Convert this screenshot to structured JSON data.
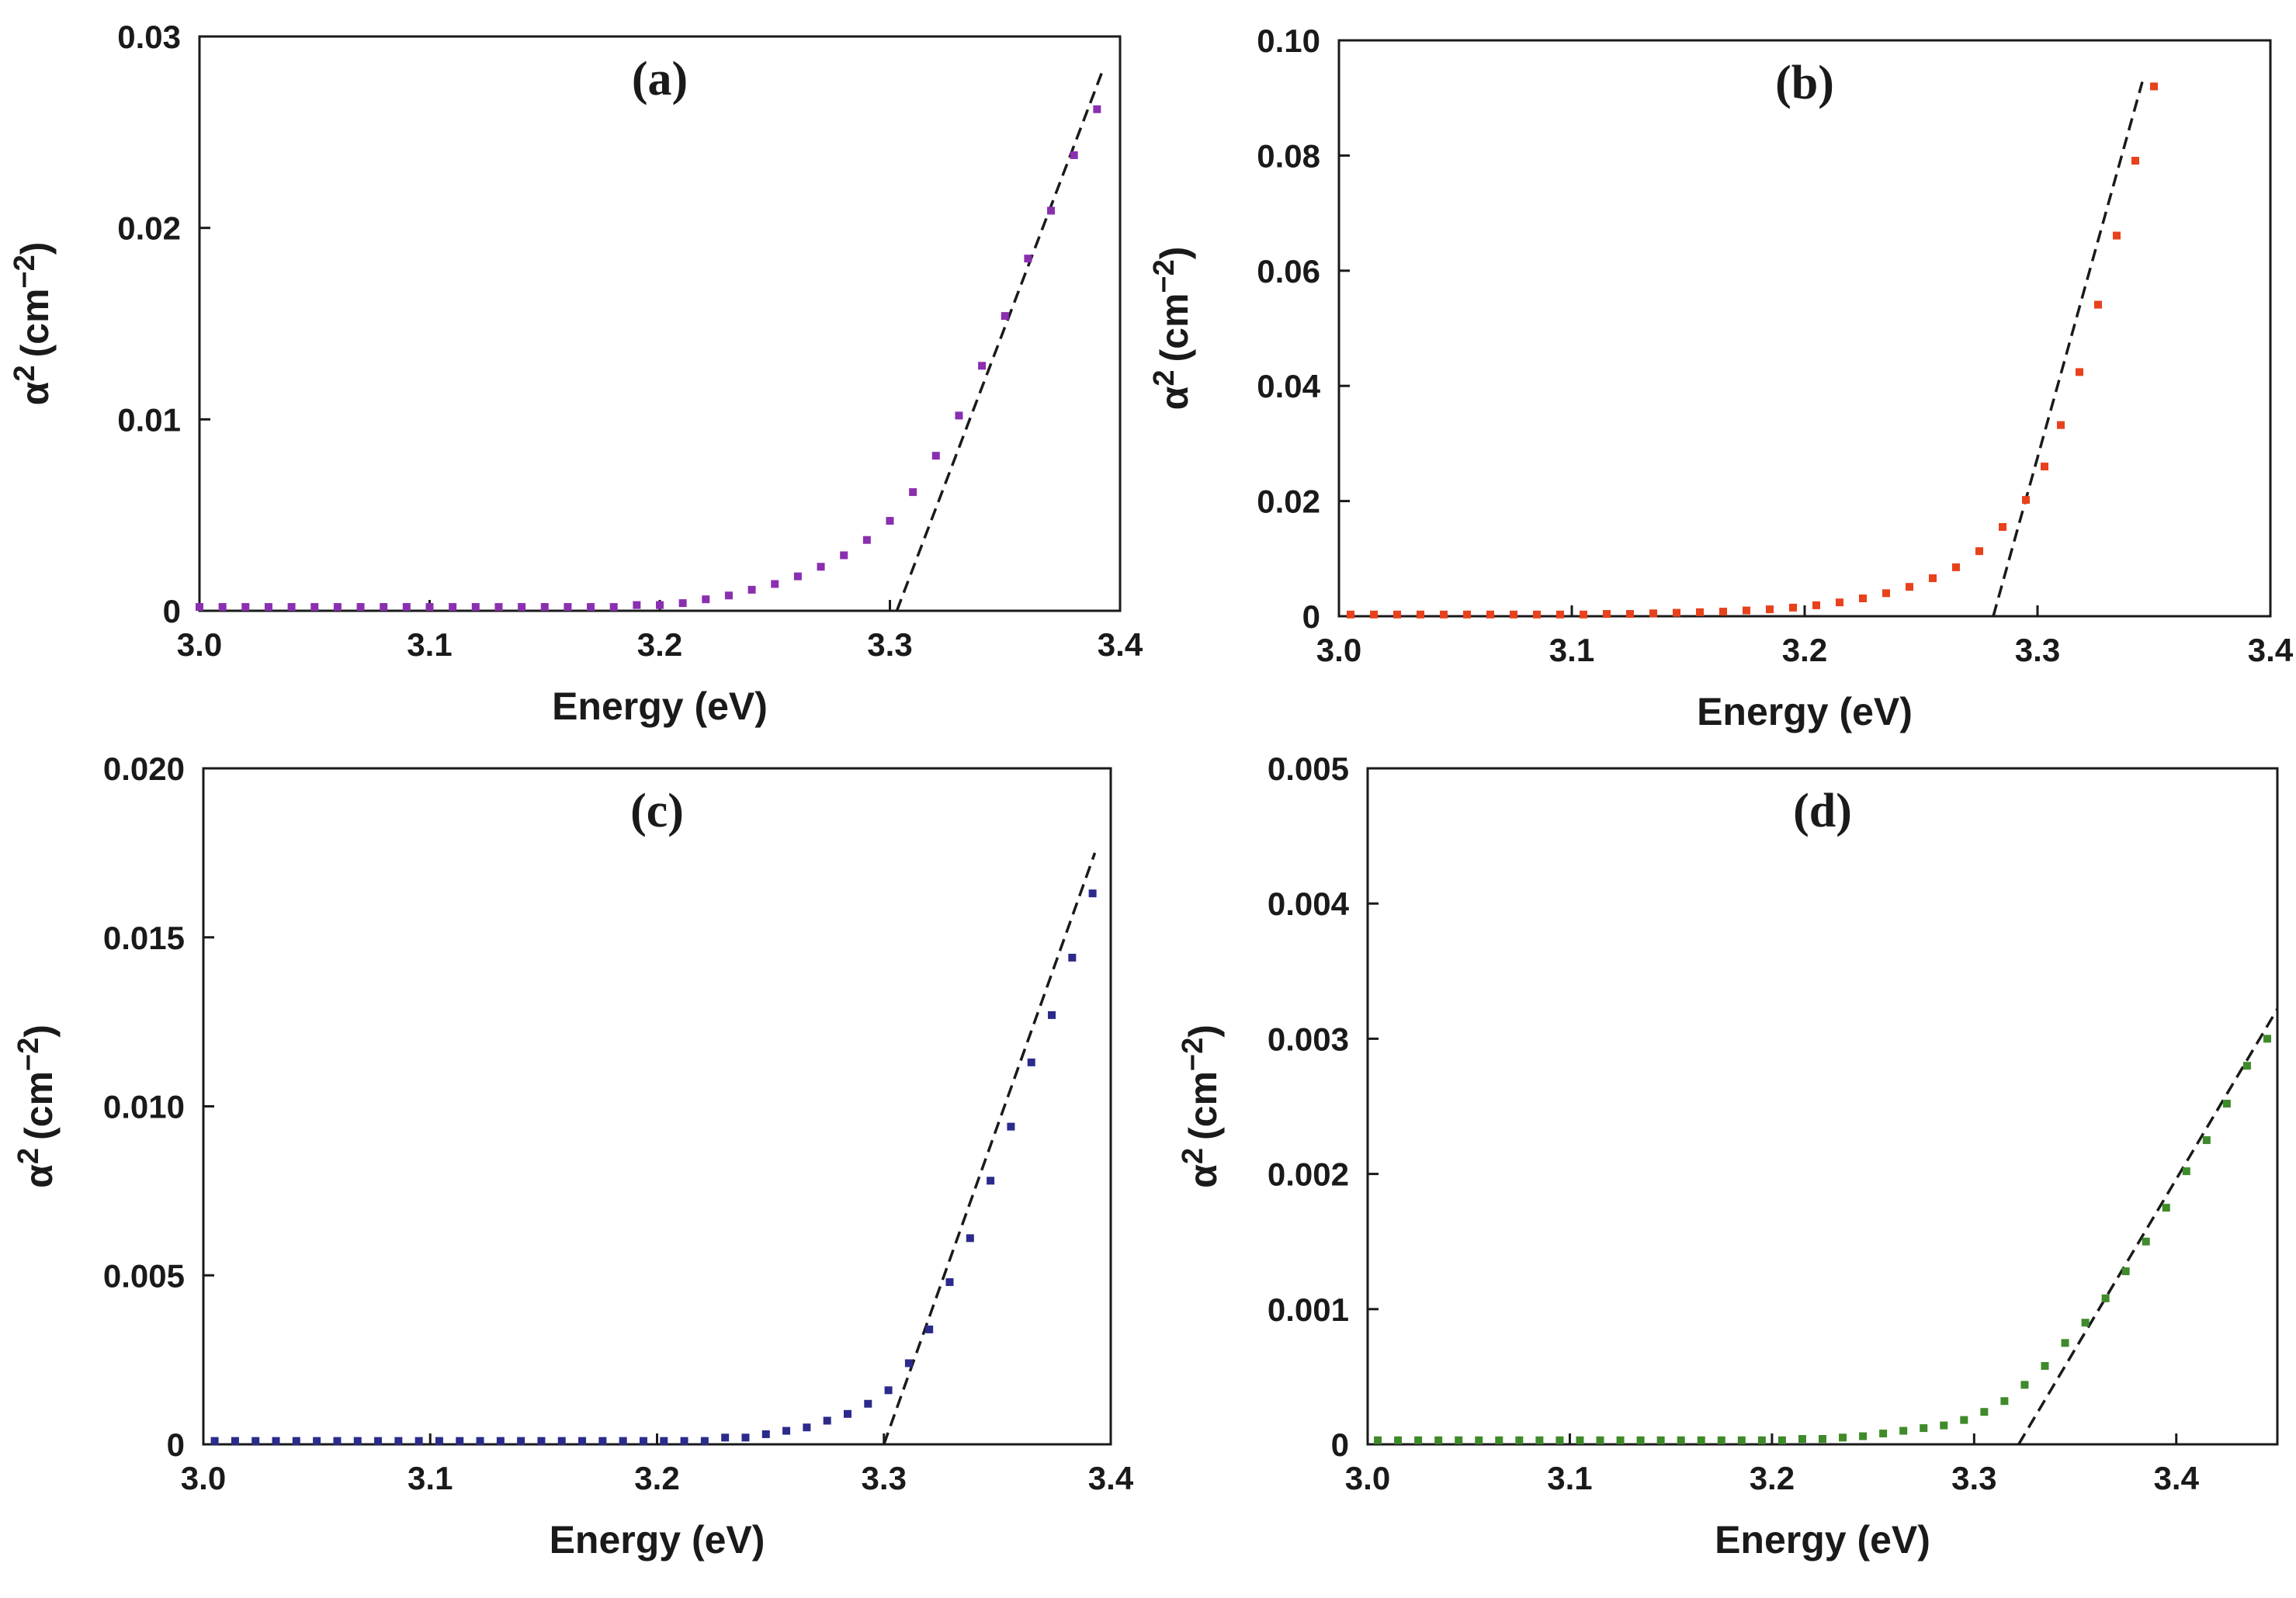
{
  "chart_data": [
    {
      "type": "scatter",
      "panel_label": "(a)",
      "xlabel": "Energy (eV)",
      "ylabel": "α² (cm⁻²)",
      "ylabel_base": "α",
      "ylabel_sup": "2",
      "ylabel_unit": "(cm",
      "ylabel_unit_sup": "−2",
      "ylabel_close": ")",
      "xlim": [
        3.0,
        3.4
      ],
      "ylim": [
        0,
        0.03
      ],
      "xticks": [
        3.0,
        3.1,
        3.2,
        3.3,
        3.4
      ],
      "xtick_labels": [
        "3.0",
        "3.1",
        "3.2",
        "3.3",
        "3.4"
      ],
      "yticks": [
        0,
        0.01,
        0.02,
        0.03
      ],
      "ytick_labels": [
        "0",
        "0.01",
        "0.02",
        "0.03"
      ],
      "color": "#8a2fb0",
      "series": [
        {
          "name": "data",
          "x": [
            3.0,
            3.01,
            3.02,
            3.03,
            3.04,
            3.05,
            3.06,
            3.07,
            3.08,
            3.09,
            3.1,
            3.11,
            3.12,
            3.13,
            3.14,
            3.15,
            3.16,
            3.17,
            3.18,
            3.19,
            3.2,
            3.21,
            3.22,
            3.23,
            3.24,
            3.25,
            3.26,
            3.27,
            3.28,
            3.29,
            3.3,
            3.31,
            3.32,
            3.33,
            3.34,
            3.35,
            3.36,
            3.37,
            3.38,
            3.39
          ],
          "y": [
            0.0002,
            0.0002,
            0.0002,
            0.0002,
            0.0002,
            0.0002,
            0.0002,
            0.0002,
            0.0002,
            0.0002,
            0.0002,
            0.0002,
            0.0002,
            0.0002,
            0.0002,
            0.0002,
            0.0002,
            0.0002,
            0.0002,
            0.0003,
            0.0003,
            0.0004,
            0.0006,
            0.0008,
            0.0011,
            0.0014,
            0.0018,
            0.0023,
            0.0029,
            0.0037,
            0.0047,
            0.0062,
            0.0081,
            0.0102,
            0.0128,
            0.0154,
            0.0184,
            0.0209,
            0.0238,
            0.0262
          ]
        }
      ],
      "fit_line": {
        "x": [
          3.303,
          3.393
        ],
        "y": [
          0,
          0.0284
        ]
      }
    },
    {
      "type": "scatter",
      "panel_label": "(b)",
      "xlabel": "Energy (eV)",
      "ylabel": "α² (cm⁻²)",
      "ylabel_base": "α",
      "ylabel_sup": "2",
      "ylabel_unit": "(cm",
      "ylabel_unit_sup": "−2",
      "ylabel_close": ")",
      "xlim": [
        3.0,
        3.4
      ],
      "ylim": [
        0,
        0.1
      ],
      "xticks": [
        3.0,
        3.1,
        3.2,
        3.3,
        3.4
      ],
      "xtick_labels": [
        "3.0",
        "3.1",
        "3.2",
        "3.3",
        "3.4"
      ],
      "yticks": [
        0,
        0.02,
        0.04,
        0.06,
        0.08,
        0.1
      ],
      "ytick_labels": [
        "0",
        "0.02",
        "0.04",
        "0.06",
        "0.08",
        "0.10"
      ],
      "color": "#e8411c",
      "series": [
        {
          "name": "data",
          "x": [
            3.005,
            3.015,
            3.025,
            3.035,
            3.045,
            3.055,
            3.065,
            3.075,
            3.085,
            3.095,
            3.105,
            3.115,
            3.125,
            3.135,
            3.145,
            3.155,
            3.165,
            3.175,
            3.185,
            3.195,
            3.205,
            3.215,
            3.225,
            3.235,
            3.245,
            3.255,
            3.265,
            3.275,
            3.285,
            3.295,
            3.303,
            3.31,
            3.318,
            3.326,
            3.334,
            3.342,
            3.35
          ],
          "y": [
            0.0003,
            0.0003,
            0.0003,
            0.0003,
            0.0003,
            0.0003,
            0.0003,
            0.0003,
            0.0003,
            0.0003,
            0.0003,
            0.0004,
            0.0004,
            0.0005,
            0.0006,
            0.0007,
            0.0008,
            0.001,
            0.0012,
            0.0015,
            0.0019,
            0.0024,
            0.0031,
            0.004,
            0.0051,
            0.0066,
            0.0085,
            0.0113,
            0.0155,
            0.0202,
            0.026,
            0.0332,
            0.0424,
            0.0541,
            0.0661,
            0.0791,
            0.092
          ]
        }
      ],
      "fit_line": {
        "x": [
          3.281,
          3.345
        ],
        "y": [
          0,
          0.0928
        ]
      }
    },
    {
      "type": "scatter",
      "panel_label": "(c)",
      "xlabel": "Energy (eV)",
      "ylabel": "α² (cm⁻²)",
      "ylabel_base": "α",
      "ylabel_sup": "2",
      "ylabel_unit": "(cm",
      "ylabel_unit_sup": "−2",
      "ylabel_close": ")",
      "xlim": [
        3.0,
        3.4
      ],
      "ylim": [
        0,
        0.02
      ],
      "xticks": [
        3.0,
        3.1,
        3.2,
        3.3,
        3.4
      ],
      "xtick_labels": [
        "3.0",
        "3.1",
        "3.2",
        "3.3",
        "3.4"
      ],
      "yticks": [
        0,
        0.005,
        0.01,
        0.015,
        0.02
      ],
      "ytick_labels": [
        "0",
        "0.005",
        "0.010",
        "0.015",
        "0.020"
      ],
      "color": "#2b2b8c",
      "series": [
        {
          "name": "data",
          "x": [
            3.005,
            3.014,
            3.023,
            3.032,
            3.041,
            3.05,
            3.059,
            3.068,
            3.077,
            3.086,
            3.095,
            3.104,
            3.113,
            3.122,
            3.131,
            3.14,
            3.149,
            3.158,
            3.167,
            3.176,
            3.185,
            3.194,
            3.203,
            3.212,
            3.221,
            3.23,
            3.239,
            3.248,
            3.257,
            3.266,
            3.275,
            3.284,
            3.293,
            3.302,
            3.311,
            3.32,
            3.329,
            3.338,
            3.347,
            3.356,
            3.365,
            3.374,
            3.383,
            3.392
          ],
          "y": [
            0.0001,
            0.0001,
            0.0001,
            0.0001,
            0.0001,
            0.0001,
            0.0001,
            0.0001,
            0.0001,
            0.0001,
            0.0001,
            0.0001,
            0.0001,
            0.0001,
            0.0001,
            0.0001,
            0.0001,
            0.0001,
            0.0001,
            0.0001,
            0.0001,
            0.0001,
            0.0001,
            0.0001,
            0.0001,
            0.0002,
            0.0002,
            0.0003,
            0.0004,
            0.0005,
            0.0007,
            0.0009,
            0.0012,
            0.0016,
            0.0024,
            0.0034,
            0.0048,
            0.0061,
            0.0078,
            0.0094,
            0.0113,
            0.0127,
            0.0144,
            0.0163
          ]
        }
      ],
      "fit_line": {
        "x": [
          3.3,
          3.393
        ],
        "y": [
          0,
          0.0175
        ]
      }
    },
    {
      "type": "scatter",
      "panel_label": "(d)",
      "xlabel": "Energy (eV)",
      "ylabel": "α² (cm⁻²)",
      "ylabel_base": "α",
      "ylabel_sup": "2",
      "ylabel_unit": "(cm",
      "ylabel_unit_sup": "−2",
      "ylabel_close": ")",
      "xlim": [
        3.0,
        3.45
      ],
      "ylim": [
        0,
        0.005
      ],
      "xticks": [
        3.0,
        3.1,
        3.2,
        3.3,
        3.4
      ],
      "xtick_labels": [
        "3.0",
        "3.1",
        "3.2",
        "3.3",
        "3.4"
      ],
      "yticks": [
        0,
        0.001,
        0.002,
        0.003,
        0.004,
        0.005
      ],
      "ytick_labels": [
        "0",
        "0.001",
        "0.002",
        "0.003",
        "0.004",
        "0.005"
      ],
      "color": "#3f8a2a",
      "series": [
        {
          "name": "data",
          "x": [
            3.005,
            3.015,
            3.025,
            3.035,
            3.045,
            3.055,
            3.065,
            3.075,
            3.085,
            3.095,
            3.105,
            3.115,
            3.125,
            3.135,
            3.145,
            3.155,
            3.165,
            3.175,
            3.185,
            3.195,
            3.205,
            3.215,
            3.225,
            3.235,
            3.245,
            3.255,
            3.265,
            3.275,
            3.285,
            3.295,
            3.305,
            3.315,
            3.325,
            3.335,
            3.345,
            3.355,
            3.365,
            3.375,
            3.385,
            3.395,
            3.405,
            3.415,
            3.425,
            3.435,
            3.445
          ],
          "y": [
            3e-05,
            3e-05,
            3e-05,
            3e-05,
            3e-05,
            3e-05,
            3e-05,
            3e-05,
            3e-05,
            3e-05,
            3e-05,
            3e-05,
            3e-05,
            3e-05,
            3e-05,
            3e-05,
            3e-05,
            3e-05,
            3e-05,
            3e-05,
            3e-05,
            4e-05,
            4e-05,
            5e-05,
            6e-05,
            8e-05,
            0.0001,
            0.00012,
            0.00014,
            0.00018,
            0.00024,
            0.00032,
            0.00044,
            0.00058,
            0.00075,
            0.0009,
            0.00108,
            0.00128,
            0.0015,
            0.00175,
            0.00202,
            0.00225,
            0.00252,
            0.0028,
            0.003
          ]
        }
      ],
      "fit_line": {
        "x": [
          3.322,
          3.45
        ],
        "y": [
          0,
          0.00322
        ]
      }
    }
  ]
}
